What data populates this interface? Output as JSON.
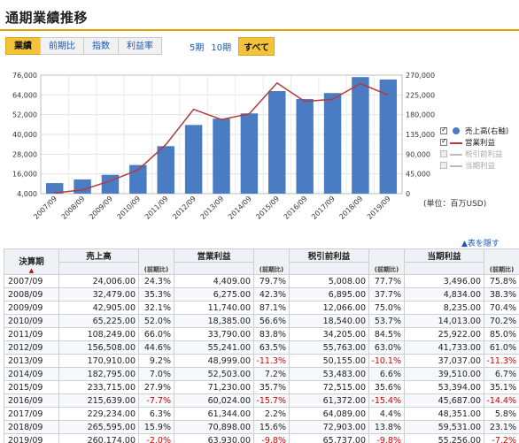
{
  "page": {
    "title": "通期業績推移"
  },
  "tabs": [
    {
      "label": "業績",
      "active": true
    },
    {
      "label": "前期比",
      "active": false
    },
    {
      "label": "指数",
      "active": false
    },
    {
      "label": "利益率",
      "active": false
    }
  ],
  "periods": [
    {
      "label": "5期",
      "active": false
    },
    {
      "label": "10期",
      "active": false
    },
    {
      "label": "すべて",
      "active": true
    }
  ],
  "chart_data": {
    "type": "bar",
    "categories": [
      "2007/09",
      "2008/09",
      "2009/09",
      "2010/09",
      "2011/09",
      "2012/09",
      "2013/09",
      "2014/09",
      "2015/09",
      "2016/09",
      "2017/09",
      "2018/09",
      "2019/09"
    ],
    "left_axis": {
      "min": 4000,
      "max": 76000,
      "ticks": [
        "4,000",
        "16,000",
        "28,000",
        "40,000",
        "52,000",
        "64,000",
        "76,000"
      ]
    },
    "right_axis": {
      "min": 0,
      "max": 270000,
      "ticks": [
        "0",
        "45,000",
        "90,000",
        "135,000",
        "180,000",
        "225,000",
        "270,000"
      ]
    },
    "series": [
      {
        "name": "売上高(右軸)",
        "kind": "bar",
        "axis": "right",
        "color": "#4a7cc4",
        "values": [
          24006,
          32479,
          42905,
          65225,
          108249,
          156508,
          170910,
          182795,
          233715,
          215639,
          229234,
          265595,
          260174
        ]
      },
      {
        "name": "営業利益",
        "kind": "line",
        "axis": "left",
        "color": "#b23b3b",
        "values": [
          4409,
          6275,
          11740,
          18385,
          33790,
          55241,
          48999,
          52503,
          71230,
          60024,
          61344,
          70898,
          63930
        ]
      }
    ]
  },
  "legend": [
    {
      "label": "売上高(右軸)",
      "checked": true,
      "symbol": "dot",
      "enabled": true
    },
    {
      "label": "営業利益",
      "checked": true,
      "symbol": "line",
      "enabled": true
    },
    {
      "label": "税引前利益",
      "checked": false,
      "symbol": "line",
      "enabled": false
    },
    {
      "label": "当期利益",
      "checked": false,
      "symbol": "line",
      "enabled": false
    }
  ],
  "unit_note": "(単位：百万USD)",
  "hide_table_link": "▲表を隠す",
  "table": {
    "period_header": "決算期",
    "sort_arrow": "▲",
    "metric_headers": [
      "売上高",
      "営業利益",
      "税引前利益",
      "当期利益"
    ],
    "sub_header": "(前期比)",
    "rows": [
      {
        "period": "2007/09",
        "cells": [
          "24,006.00",
          "24.3%",
          "4,409.00",
          "79.7%",
          "5,008.00",
          "77.7%",
          "3,496.00",
          "75.8%"
        ]
      },
      {
        "period": "2008/09",
        "cells": [
          "32,479.00",
          "35.3%",
          "6,275.00",
          "42.3%",
          "6,895.00",
          "37.7%",
          "4,834.00",
          "38.3%"
        ]
      },
      {
        "period": "2009/09",
        "cells": [
          "42,905.00",
          "32.1%",
          "11,740.00",
          "87.1%",
          "12,066.00",
          "75.0%",
          "8,235.00",
          "70.4%"
        ]
      },
      {
        "period": "2010/09",
        "cells": [
          "65,225.00",
          "52.0%",
          "18,385.00",
          "56.6%",
          "18,540.00",
          "53.7%",
          "14,013.00",
          "70.2%"
        ]
      },
      {
        "period": "2011/09",
        "cells": [
          "108,249.00",
          "66.0%",
          "33,790.00",
          "83.8%",
          "34,205.00",
          "84.5%",
          "25,922.00",
          "85.0%"
        ]
      },
      {
        "period": "2012/09",
        "cells": [
          "156,508.00",
          "44.6%",
          "55,241.00",
          "63.5%",
          "55,763.00",
          "63.0%",
          "41,733.00",
          "61.0%"
        ]
      },
      {
        "period": "2013/09",
        "cells": [
          "170,910.00",
          "9.2%",
          "48,999.00",
          "-11.3%",
          "50,155.00",
          "-10.1%",
          "37,037.00",
          "-11.3%"
        ]
      },
      {
        "period": "2014/09",
        "cells": [
          "182,795.00",
          "7.0%",
          "52,503.00",
          "7.2%",
          "53,483.00",
          "6.6%",
          "39,510.00",
          "6.7%"
        ]
      },
      {
        "period": "2015/09",
        "cells": [
          "233,715.00",
          "27.9%",
          "71,230.00",
          "35.7%",
          "72,515.00",
          "35.6%",
          "53,394.00",
          "35.1%"
        ]
      },
      {
        "period": "2016/09",
        "cells": [
          "215,639.00",
          "-7.7%",
          "60,024.00",
          "-15.7%",
          "61,372.00",
          "-15.4%",
          "45,687.00",
          "-14.4%"
        ]
      },
      {
        "period": "2017/09",
        "cells": [
          "229,234.00",
          "6.3%",
          "61,344.00",
          "2.2%",
          "64,089.00",
          "4.4%",
          "48,351.00",
          "5.8%"
        ]
      },
      {
        "period": "2018/09",
        "cells": [
          "265,595.00",
          "15.9%",
          "70,898.00",
          "15.6%",
          "72,903.00",
          "13.8%",
          "59,531.00",
          "23.1%"
        ]
      },
      {
        "period": "2019/09",
        "cells": [
          "260,174.00",
          "-2.0%",
          "63,930.00",
          "-9.8%",
          "65,737.00",
          "-9.8%",
          "55,256.00",
          "-7.2%"
        ]
      }
    ]
  }
}
